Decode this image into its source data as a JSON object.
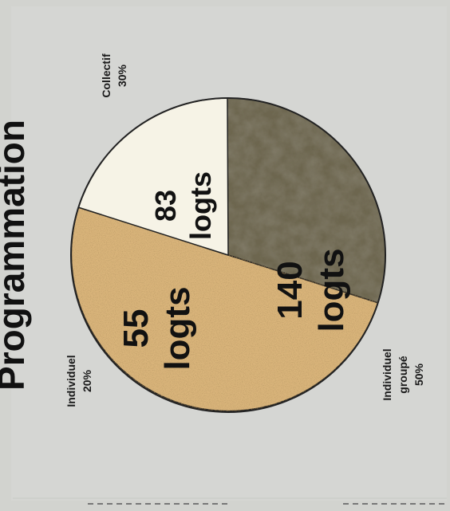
{
  "heading": "Programmation",
  "colors": {
    "page_bg": "#d2d3cf",
    "panel_bg": "#d5d6d3",
    "collectif_fill": "#6d6650",
    "individuel_groupe_fill": "#d9b47a",
    "individuel_fill": "#f6f3e6"
  },
  "chart_data": {
    "type": "pie",
    "slices": [
      {
        "id": "collectif",
        "category": "Collectif",
        "percent_label": "30%",
        "percent": 30,
        "count_value": "83",
        "count_unit": "logts"
      },
      {
        "id": "individuel_groupe",
        "category": "Individuel groupé",
        "category_lines": [
          "Individuel",
          "groupé"
        ],
        "percent_label": "50%",
        "percent": 50,
        "count_value": "140",
        "count_unit": "logts"
      },
      {
        "id": "individuel",
        "category": "Individuel",
        "percent_label": "20%",
        "percent": 20,
        "count_value": "55",
        "count_unit": "logts"
      }
    ],
    "orientation": "rotated-90-ccw"
  }
}
